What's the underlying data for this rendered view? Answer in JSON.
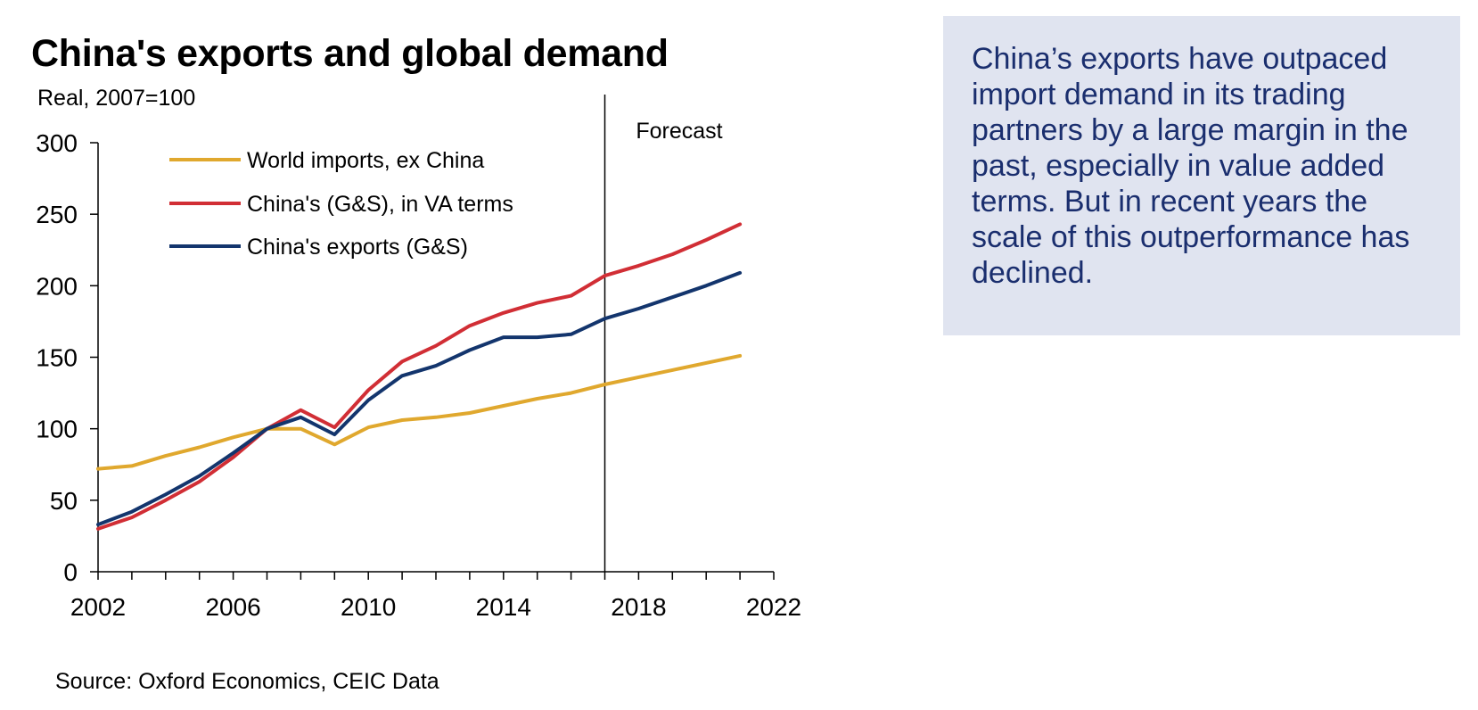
{
  "title": "China's exports and global demand",
  "subtitle": "Real, 2007=100",
  "source": "Source: Oxford Economics, CEIC Data",
  "callout": "China’s exports have outpaced import demand in its trading partners by a large margin in the past, especially in value added terms. But in recent years the scale of this outperformance has declined.",
  "chart_data": {
    "type": "line",
    "xlim": [
      2002,
      2022
    ],
    "ylim": [
      0,
      300
    ],
    "x_ticks": [
      "2002",
      "2006",
      "2010",
      "2014",
      "2018",
      "2022"
    ],
    "y_ticks": [
      "0",
      "50",
      "100",
      "150",
      "200",
      "250",
      "300"
    ],
    "grid": false,
    "legend_position": "top-left",
    "forecast": {
      "x": 2017,
      "label": "Forecast"
    },
    "x": [
      2002,
      2003,
      2004,
      2005,
      2006,
      2007,
      2008,
      2009,
      2010,
      2011,
      2012,
      2013,
      2014,
      2015,
      2016,
      2017,
      2018,
      2019,
      2020,
      2021
    ],
    "series": [
      {
        "name": "World imports, ex China",
        "color": "#e0a82e",
        "values": [
          72,
          74,
          81,
          87,
          94,
          100,
          100,
          89,
          101,
          106,
          108,
          111,
          116,
          121,
          125,
          131,
          136,
          141,
          146,
          151
        ]
      },
      {
        "name": "China's (G&S), in VA terms",
        "color": "#d12e35",
        "values": [
          30,
          38,
          50,
          63,
          80,
          100,
          113,
          101,
          127,
          147,
          158,
          172,
          181,
          188,
          193,
          207,
          214,
          222,
          232,
          243
        ]
      },
      {
        "name": "China's exports (G&S)",
        "color": "#13356d",
        "values": [
          33,
          42,
          54,
          67,
          83,
          100,
          108,
          96,
          120,
          137,
          144,
          155,
          164,
          164,
          166,
          177,
          184,
          192,
          200,
          209
        ]
      }
    ]
  }
}
